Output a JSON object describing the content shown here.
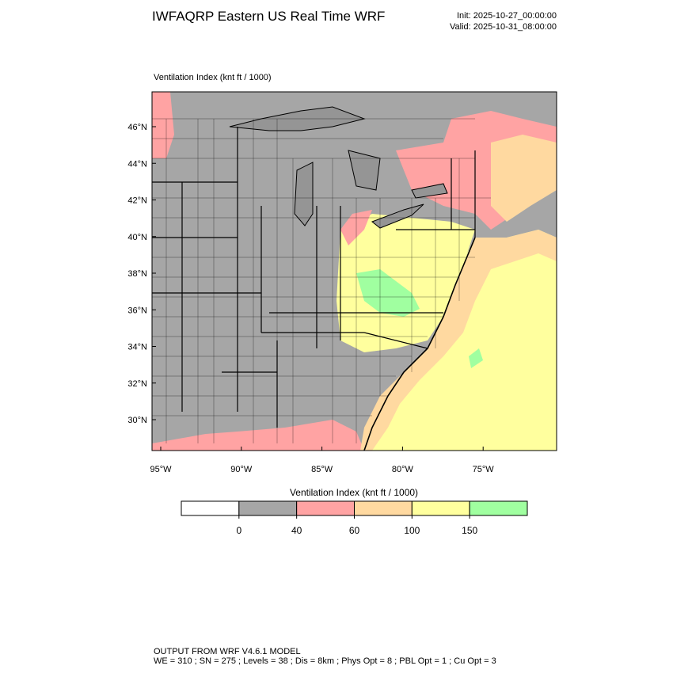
{
  "header": {
    "title": "IWFAQRP Eastern US Real Time WRF",
    "init": "Init: 2025-10-27_00:00:00",
    "valid": "Valid: 2025-10-31_08:00:00"
  },
  "plot": {
    "label": "Ventilation Index   (knt ft / 1000)",
    "lat_labels": [
      "46°N",
      "44°N",
      "42°N",
      "40°N",
      "38°N",
      "36°N",
      "34°N",
      "32°N",
      "30°N"
    ],
    "lon_labels": [
      "95°W",
      "90°W",
      "85°W",
      "80°W",
      "75°W"
    ]
  },
  "colorbar": {
    "title": "Ventilation Index  (knt ft / 1000)",
    "colors": [
      "#ffffff",
      "#a6a6a6",
      "#ffa3a3",
      "#ffd9a0",
      "#ffff9e",
      "#a0ffa0"
    ],
    "ticks": [
      0,
      40,
      60,
      100,
      150
    ]
  },
  "footer": {
    "line1": "OUTPUT FROM WRF V4.6.1 MODEL",
    "line2": "WE = 310 ; SN = 275 ; Levels = 38 ; Dis = 8km ; Phys Opt = 8 ; PBL Opt = 1 ; Cu Opt = 3"
  }
}
